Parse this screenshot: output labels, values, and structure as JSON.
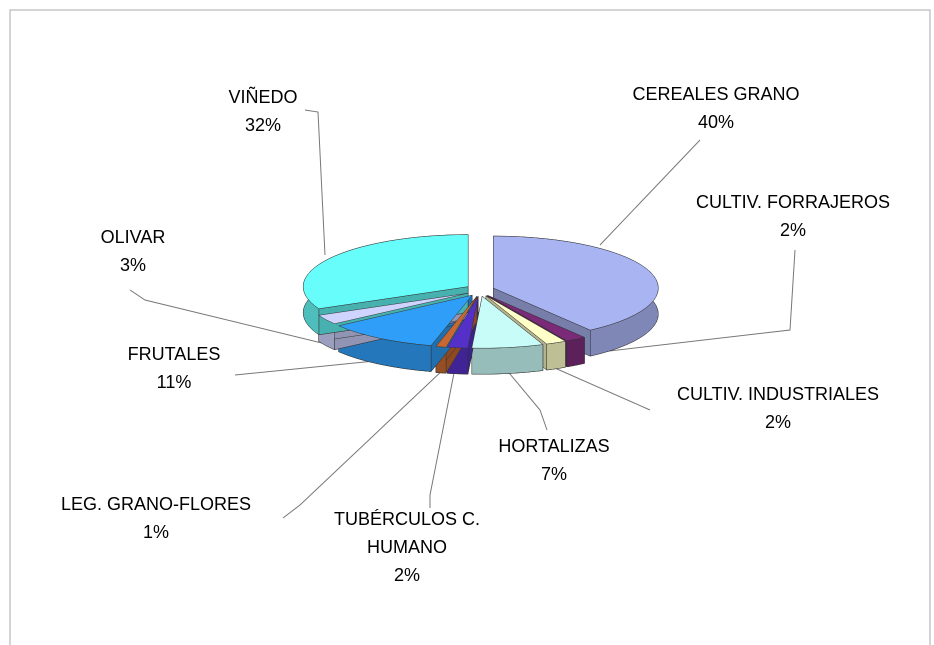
{
  "chart_data": {
    "type": "pie",
    "categories": [
      "CEREALES GRANO",
      "CULTIV. FORRAJEROS",
      "CULTIV. INDUSTRIALES",
      "HORTALIZAS",
      "TUBÉRCULOS C. HUMANO",
      "LEG. GRANO-FLORES",
      "FRUTALES",
      "OLIVAR",
      "VIÑEDO"
    ],
    "values": [
      40,
      2,
      2,
      7,
      2,
      1,
      11,
      3,
      32
    ],
    "value_labels": [
      "40%",
      "2%",
      "2%",
      "7%",
      "2%",
      "1%",
      "11%",
      "3%",
      "32%"
    ],
    "colors": [
      "#a9b4f2",
      "#7b2a78",
      "#ffffc8",
      "#c8fcf8",
      "#5530c8",
      "#c86830",
      "#2f9ef8",
      "#cfd4ff",
      "#66fdfb"
    ]
  }
}
